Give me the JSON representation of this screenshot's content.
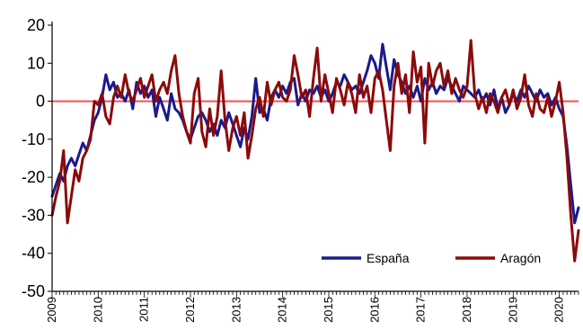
{
  "chart_data": {
    "type": "line",
    "title": "",
    "xlabel": "",
    "ylabel": "",
    "ylim": [
      -50,
      20
    ],
    "yticks": [
      20,
      10,
      0,
      -10,
      -20,
      -30,
      -40,
      -50
    ],
    "xlim": [
      2009.0,
      2020.4167
    ],
    "xtick_labels": [
      "2009",
      "2010",
      "2011",
      "2012",
      "2013",
      "2014",
      "2015",
      "2016",
      "2017",
      "2018",
      "2019",
      "2020"
    ],
    "reference_line": {
      "y": 0,
      "color": "#ff4d4d"
    },
    "legend": {
      "placement": "bottom-right"
    },
    "series": [
      {
        "name": "España",
        "color": "#1a1a8c",
        "points": [
          [
            2009.0,
            -25
          ],
          [
            2009.083,
            -22
          ],
          [
            2009.167,
            -19
          ],
          [
            2009.25,
            -21
          ],
          [
            2009.333,
            -17
          ],
          [
            2009.417,
            -15
          ],
          [
            2009.5,
            -17
          ],
          [
            2009.583,
            -14
          ],
          [
            2009.667,
            -11
          ],
          [
            2009.75,
            -13
          ],
          [
            2009.833,
            -9
          ],
          [
            2009.917,
            -5
          ],
          [
            2010.0,
            -3
          ],
          [
            2010.083,
            1
          ],
          [
            2010.167,
            7
          ],
          [
            2010.25,
            3
          ],
          [
            2010.333,
            5
          ],
          [
            2010.417,
            1
          ],
          [
            2010.5,
            2
          ],
          [
            2010.583,
            0
          ],
          [
            2010.667,
            3
          ],
          [
            2010.75,
            -2
          ],
          [
            2010.833,
            5
          ],
          [
            2010.917,
            2
          ],
          [
            2011.0,
            4
          ],
          [
            2011.083,
            1
          ],
          [
            2011.167,
            3
          ],
          [
            2011.25,
            -4
          ],
          [
            2011.333,
            1
          ],
          [
            2011.417,
            -2
          ],
          [
            2011.5,
            -5
          ],
          [
            2011.583,
            2
          ],
          [
            2011.667,
            -2
          ],
          [
            2011.75,
            -3
          ],
          [
            2011.833,
            -5
          ],
          [
            2011.917,
            -8
          ],
          [
            2012.0,
            -10
          ],
          [
            2012.083,
            -7
          ],
          [
            2012.167,
            -4
          ],
          [
            2012.25,
            -3
          ],
          [
            2012.333,
            -5
          ],
          [
            2012.417,
            -8
          ],
          [
            2012.5,
            -6
          ],
          [
            2012.583,
            -9
          ],
          [
            2012.667,
            -5
          ],
          [
            2012.75,
            -7
          ],
          [
            2012.833,
            -3
          ],
          [
            2012.917,
            -6
          ],
          [
            2013.0,
            -9
          ],
          [
            2013.083,
            -12
          ],
          [
            2013.167,
            -7
          ],
          [
            2013.25,
            -10
          ],
          [
            2013.333,
            -4
          ],
          [
            2013.417,
            6
          ],
          [
            2013.5,
            -3
          ],
          [
            2013.583,
            -2
          ],
          [
            2013.667,
            -5
          ],
          [
            2013.75,
            1
          ],
          [
            2013.833,
            3
          ],
          [
            2013.917,
            1
          ],
          [
            2014.0,
            4
          ],
          [
            2014.083,
            2
          ],
          [
            2014.167,
            5
          ],
          [
            2014.25,
            6
          ],
          [
            2014.333,
            -1
          ],
          [
            2014.417,
            2
          ],
          [
            2014.5,
            0
          ],
          [
            2014.583,
            3
          ],
          [
            2014.667,
            2
          ],
          [
            2014.75,
            4
          ],
          [
            2014.833,
            1
          ],
          [
            2014.917,
            3
          ],
          [
            2015.0,
            0
          ],
          [
            2015.083,
            2
          ],
          [
            2015.167,
            5
          ],
          [
            2015.25,
            4
          ],
          [
            2015.333,
            7
          ],
          [
            2015.417,
            5
          ],
          [
            2015.5,
            3
          ],
          [
            2015.583,
            4
          ],
          [
            2015.667,
            2
          ],
          [
            2015.75,
            5
          ],
          [
            2015.833,
            8
          ],
          [
            2015.917,
            12
          ],
          [
            2016.0,
            10
          ],
          [
            2016.083,
            6
          ],
          [
            2016.167,
            15
          ],
          [
            2016.25,
            9
          ],
          [
            2016.333,
            3
          ],
          [
            2016.417,
            11
          ],
          [
            2016.5,
            7
          ],
          [
            2016.583,
            5
          ],
          [
            2016.667,
            2
          ],
          [
            2016.75,
            4
          ],
          [
            2016.833,
            1
          ],
          [
            2016.917,
            4
          ],
          [
            2017.0,
            0
          ],
          [
            2017.083,
            6
          ],
          [
            2017.167,
            3
          ],
          [
            2017.25,
            5
          ],
          [
            2017.333,
            2
          ],
          [
            2017.417,
            4
          ],
          [
            2017.5,
            3
          ],
          [
            2017.583,
            6
          ],
          [
            2017.667,
            4
          ],
          [
            2017.75,
            2
          ],
          [
            2017.833,
            0
          ],
          [
            2017.917,
            4
          ],
          [
            2018.0,
            3
          ],
          [
            2018.083,
            2
          ],
          [
            2018.167,
            1
          ],
          [
            2018.25,
            3
          ],
          [
            2018.333,
            0
          ],
          [
            2018.417,
            2
          ],
          [
            2018.5,
            -1
          ],
          [
            2018.583,
            3
          ],
          [
            2018.667,
            -2
          ],
          [
            2018.75,
            1
          ],
          [
            2018.833,
            -3
          ],
          [
            2018.917,
            -1
          ],
          [
            2019.0,
            2
          ],
          [
            2019.083,
            0
          ],
          [
            2019.167,
            3
          ],
          [
            2019.25,
            1
          ],
          [
            2019.333,
            4
          ],
          [
            2019.417,
            2
          ],
          [
            2019.5,
            0
          ],
          [
            2019.583,
            3
          ],
          [
            2019.667,
            1
          ],
          [
            2019.75,
            2
          ],
          [
            2019.833,
            -1
          ],
          [
            2019.917,
            1
          ],
          [
            2020.0,
            -2
          ],
          [
            2020.083,
            -4
          ],
          [
            2020.167,
            -12
          ],
          [
            2020.25,
            -22
          ],
          [
            2020.333,
            -32
          ],
          [
            2020.417,
            -28
          ]
        ]
      },
      {
        "name": "Aragón",
        "color": "#8b0a0a",
        "points": [
          [
            2009.0,
            -30
          ],
          [
            2009.083,
            -25
          ],
          [
            2009.167,
            -21
          ],
          [
            2009.25,
            -13
          ],
          [
            2009.333,
            -32
          ],
          [
            2009.417,
            -25
          ],
          [
            2009.5,
            -18
          ],
          [
            2009.583,
            -21
          ],
          [
            2009.667,
            -15
          ],
          [
            2009.75,
            -13
          ],
          [
            2009.833,
            -10
          ],
          [
            2009.917,
            0
          ],
          [
            2010.0,
            -1
          ],
          [
            2010.083,
            2
          ],
          [
            2010.167,
            -4
          ],
          [
            2010.25,
            -6
          ],
          [
            2010.333,
            1
          ],
          [
            2010.417,
            4
          ],
          [
            2010.5,
            1
          ],
          [
            2010.583,
            7
          ],
          [
            2010.667,
            2
          ],
          [
            2010.75,
            0
          ],
          [
            2010.833,
            3
          ],
          [
            2010.917,
            6
          ],
          [
            2011.0,
            1
          ],
          [
            2011.083,
            4
          ],
          [
            2011.167,
            7
          ],
          [
            2011.25,
            0
          ],
          [
            2011.333,
            3
          ],
          [
            2011.417,
            5
          ],
          [
            2011.5,
            2
          ],
          [
            2011.583,
            8
          ],
          [
            2011.667,
            12
          ],
          [
            2011.75,
            2
          ],
          [
            2011.833,
            -4
          ],
          [
            2011.917,
            -8
          ],
          [
            2012.0,
            -11
          ],
          [
            2012.083,
            2
          ],
          [
            2012.167,
            6
          ],
          [
            2012.25,
            -8
          ],
          [
            2012.333,
            -12
          ],
          [
            2012.417,
            -2
          ],
          [
            2012.5,
            -9
          ],
          [
            2012.583,
            -4
          ],
          [
            2012.667,
            8
          ],
          [
            2012.75,
            -5
          ],
          [
            2012.833,
            -13
          ],
          [
            2012.917,
            -7
          ],
          [
            2013.0,
            -4
          ],
          [
            2013.083,
            -9
          ],
          [
            2013.167,
            -3
          ],
          [
            2013.25,
            -15
          ],
          [
            2013.333,
            -9
          ],
          [
            2013.417,
            -2
          ],
          [
            2013.5,
            1
          ],
          [
            2013.583,
            -4
          ],
          [
            2013.667,
            5
          ],
          [
            2013.75,
            -1
          ],
          [
            2013.833,
            3
          ],
          [
            2013.917,
            5
          ],
          [
            2014.0,
            1
          ],
          [
            2014.083,
            0
          ],
          [
            2014.167,
            3
          ],
          [
            2014.25,
            12
          ],
          [
            2014.333,
            7
          ],
          [
            2014.417,
            1
          ],
          [
            2014.5,
            3
          ],
          [
            2014.583,
            -4
          ],
          [
            2014.667,
            6
          ],
          [
            2014.75,
            14
          ],
          [
            2014.833,
            0
          ],
          [
            2014.917,
            7
          ],
          [
            2015.0,
            2
          ],
          [
            2015.083,
            -3
          ],
          [
            2015.167,
            6
          ],
          [
            2015.25,
            3
          ],
          [
            2015.333,
            -1
          ],
          [
            2015.417,
            5
          ],
          [
            2015.5,
            2
          ],
          [
            2015.583,
            -3
          ],
          [
            2015.667,
            7
          ],
          [
            2015.75,
            1
          ],
          [
            2015.833,
            4
          ],
          [
            2015.917,
            -3
          ],
          [
            2016.0,
            6
          ],
          [
            2016.083,
            8
          ],
          [
            2016.167,
            3
          ],
          [
            2016.25,
            -5
          ],
          [
            2016.333,
            -13
          ],
          [
            2016.417,
            4
          ],
          [
            2016.5,
            10
          ],
          [
            2016.583,
            2
          ],
          [
            2016.667,
            7
          ],
          [
            2016.75,
            -3
          ],
          [
            2016.833,
            13
          ],
          [
            2016.917,
            5
          ],
          [
            2017.0,
            9
          ],
          [
            2017.083,
            -11
          ],
          [
            2017.167,
            10
          ],
          [
            2017.25,
            4
          ],
          [
            2017.333,
            8
          ],
          [
            2017.417,
            10
          ],
          [
            2017.5,
            4
          ],
          [
            2017.583,
            8
          ],
          [
            2017.667,
            2
          ],
          [
            2017.75,
            6
          ],
          [
            2017.833,
            3
          ],
          [
            2017.917,
            1
          ],
          [
            2018.0,
            4
          ],
          [
            2018.083,
            16
          ],
          [
            2018.167,
            2
          ],
          [
            2018.25,
            -2
          ],
          [
            2018.333,
            1
          ],
          [
            2018.417,
            -3
          ],
          [
            2018.5,
            2
          ],
          [
            2018.583,
            0
          ],
          [
            2018.667,
            -3
          ],
          [
            2018.75,
            1
          ],
          [
            2018.833,
            3
          ],
          [
            2018.917,
            -1
          ],
          [
            2019.0,
            3
          ],
          [
            2019.083,
            -2
          ],
          [
            2019.167,
            1
          ],
          [
            2019.25,
            7
          ],
          [
            2019.333,
            -1
          ],
          [
            2019.417,
            -4
          ],
          [
            2019.5,
            2
          ],
          [
            2019.583,
            -2
          ],
          [
            2019.667,
            -3
          ],
          [
            2019.75,
            1
          ],
          [
            2019.833,
            -4
          ],
          [
            2019.917,
            0
          ],
          [
            2020.0,
            5
          ],
          [
            2020.083,
            -3
          ],
          [
            2020.167,
            -15
          ],
          [
            2020.25,
            -30
          ],
          [
            2020.333,
            -42
          ],
          [
            2020.417,
            -34
          ]
        ]
      }
    ]
  }
}
